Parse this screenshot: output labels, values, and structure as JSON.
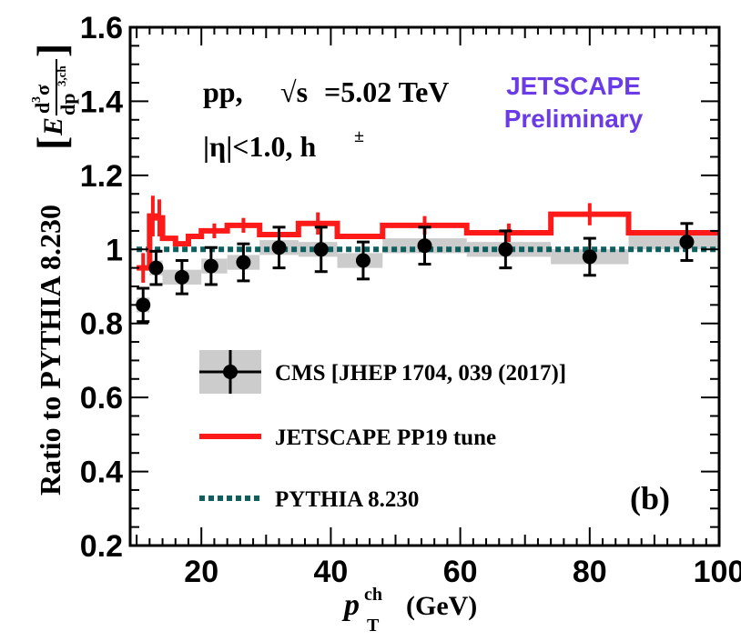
{
  "chart_data": {
    "type": "line",
    "xlim": [
      9,
      100
    ],
    "ylim": [
      0.2,
      1.6
    ],
    "xticks": [
      20,
      40,
      60,
      80,
      100
    ],
    "yticks": [
      0.2,
      0.4,
      0.6,
      0.8,
      1.0,
      1.2,
      1.4,
      1.6
    ],
    "xtick_labels": [
      "20",
      "40",
      "60",
      "80",
      "100"
    ],
    "ytick_labels": [
      "0.2",
      "0.4",
      "0.6",
      "0.8",
      "1",
      "1.2",
      "1.4",
      "1.6"
    ],
    "xlabel": {
      "main": "p",
      "sup": "ch",
      "sub": "T",
      "unit": "(GeV)"
    },
    "ylabel": {
      "main": "Ratio to PYTHIA 8.230",
      "bracket_E": "E",
      "numerator": "d",
      "numerator_sup": "3",
      "numerator_sigma": "σ",
      "denominator": "dp",
      "denominator_sup": "3,ch"
    },
    "reference_value": 1.0,
    "series": [
      {
        "name": "CMS [JHEP 1704, 039 (2017)]",
        "style": "points",
        "color": "#000000",
        "band_color": "#cccccc",
        "x": [
          11,
          13,
          17,
          21.5,
          26.5,
          32,
          38.5,
          45,
          54.5,
          67,
          80,
          95
        ],
        "y": [
          0.85,
          0.95,
          0.925,
          0.955,
          0.965,
          1.005,
          1.0,
          0.97,
          1.01,
          1.0,
          0.98,
          1.02
        ],
        "yerr": [
          0.045,
          0.045,
          0.045,
          0.05,
          0.05,
          0.055,
          0.06,
          0.05,
          0.05,
          0.05,
          0.05,
          0.05
        ],
        "syst_xlo": [
          10,
          12,
          14,
          20,
          24,
          29,
          35,
          41,
          48,
          61,
          74,
          86
        ],
        "syst_xhi": [
          12,
          14,
          20,
          24,
          29,
          35,
          41,
          48,
          61,
          74,
          86,
          100
        ],
        "syst": [
          0.02,
          0.02,
          0.02,
          0.02,
          0.02,
          0.02,
          0.02,
          0.02,
          0.02,
          0.02,
          0.02,
          0.02
        ]
      },
      {
        "name": "JETSCAPE PP19 tune",
        "style": "step",
        "color": "#ff1a1a",
        "edges": [
          10,
          12,
          13,
          14,
          16,
          18,
          20,
          24,
          29,
          35,
          41,
          48,
          61,
          74,
          86,
          100
        ],
        "y": [
          0.95,
          1.09,
          1.085,
          1.03,
          1.015,
          1.035,
          1.05,
          1.065,
          1.04,
          1.07,
          1.035,
          1.065,
          1.045,
          1.095,
          1.045
        ],
        "yerr": [
          0.04,
          0.055,
          0.05,
          0.0,
          0.0,
          0.0,
          0.02,
          0.02,
          0.0,
          0.03,
          0.0,
          0.025,
          0.025,
          0.03,
          0.0
        ]
      },
      {
        "name": "PYTHIA 8.230",
        "style": "dotted",
        "color": "#0f5e5e",
        "y": 1.0
      }
    ],
    "annotations": {
      "system": "pp,",
      "energy": "=5.02 TeV",
      "energy_sqrt": "√s",
      "cuts": "|η|<1.0, h",
      "cuts_sup": "±",
      "panel": "(b)",
      "brand_line1": "JETSCAPE",
      "brand_line2": "Preliminary"
    },
    "legend_position": "center",
    "grid": false
  },
  "colors": {
    "axis": "#000000",
    "brand": "#6a3be6"
  }
}
